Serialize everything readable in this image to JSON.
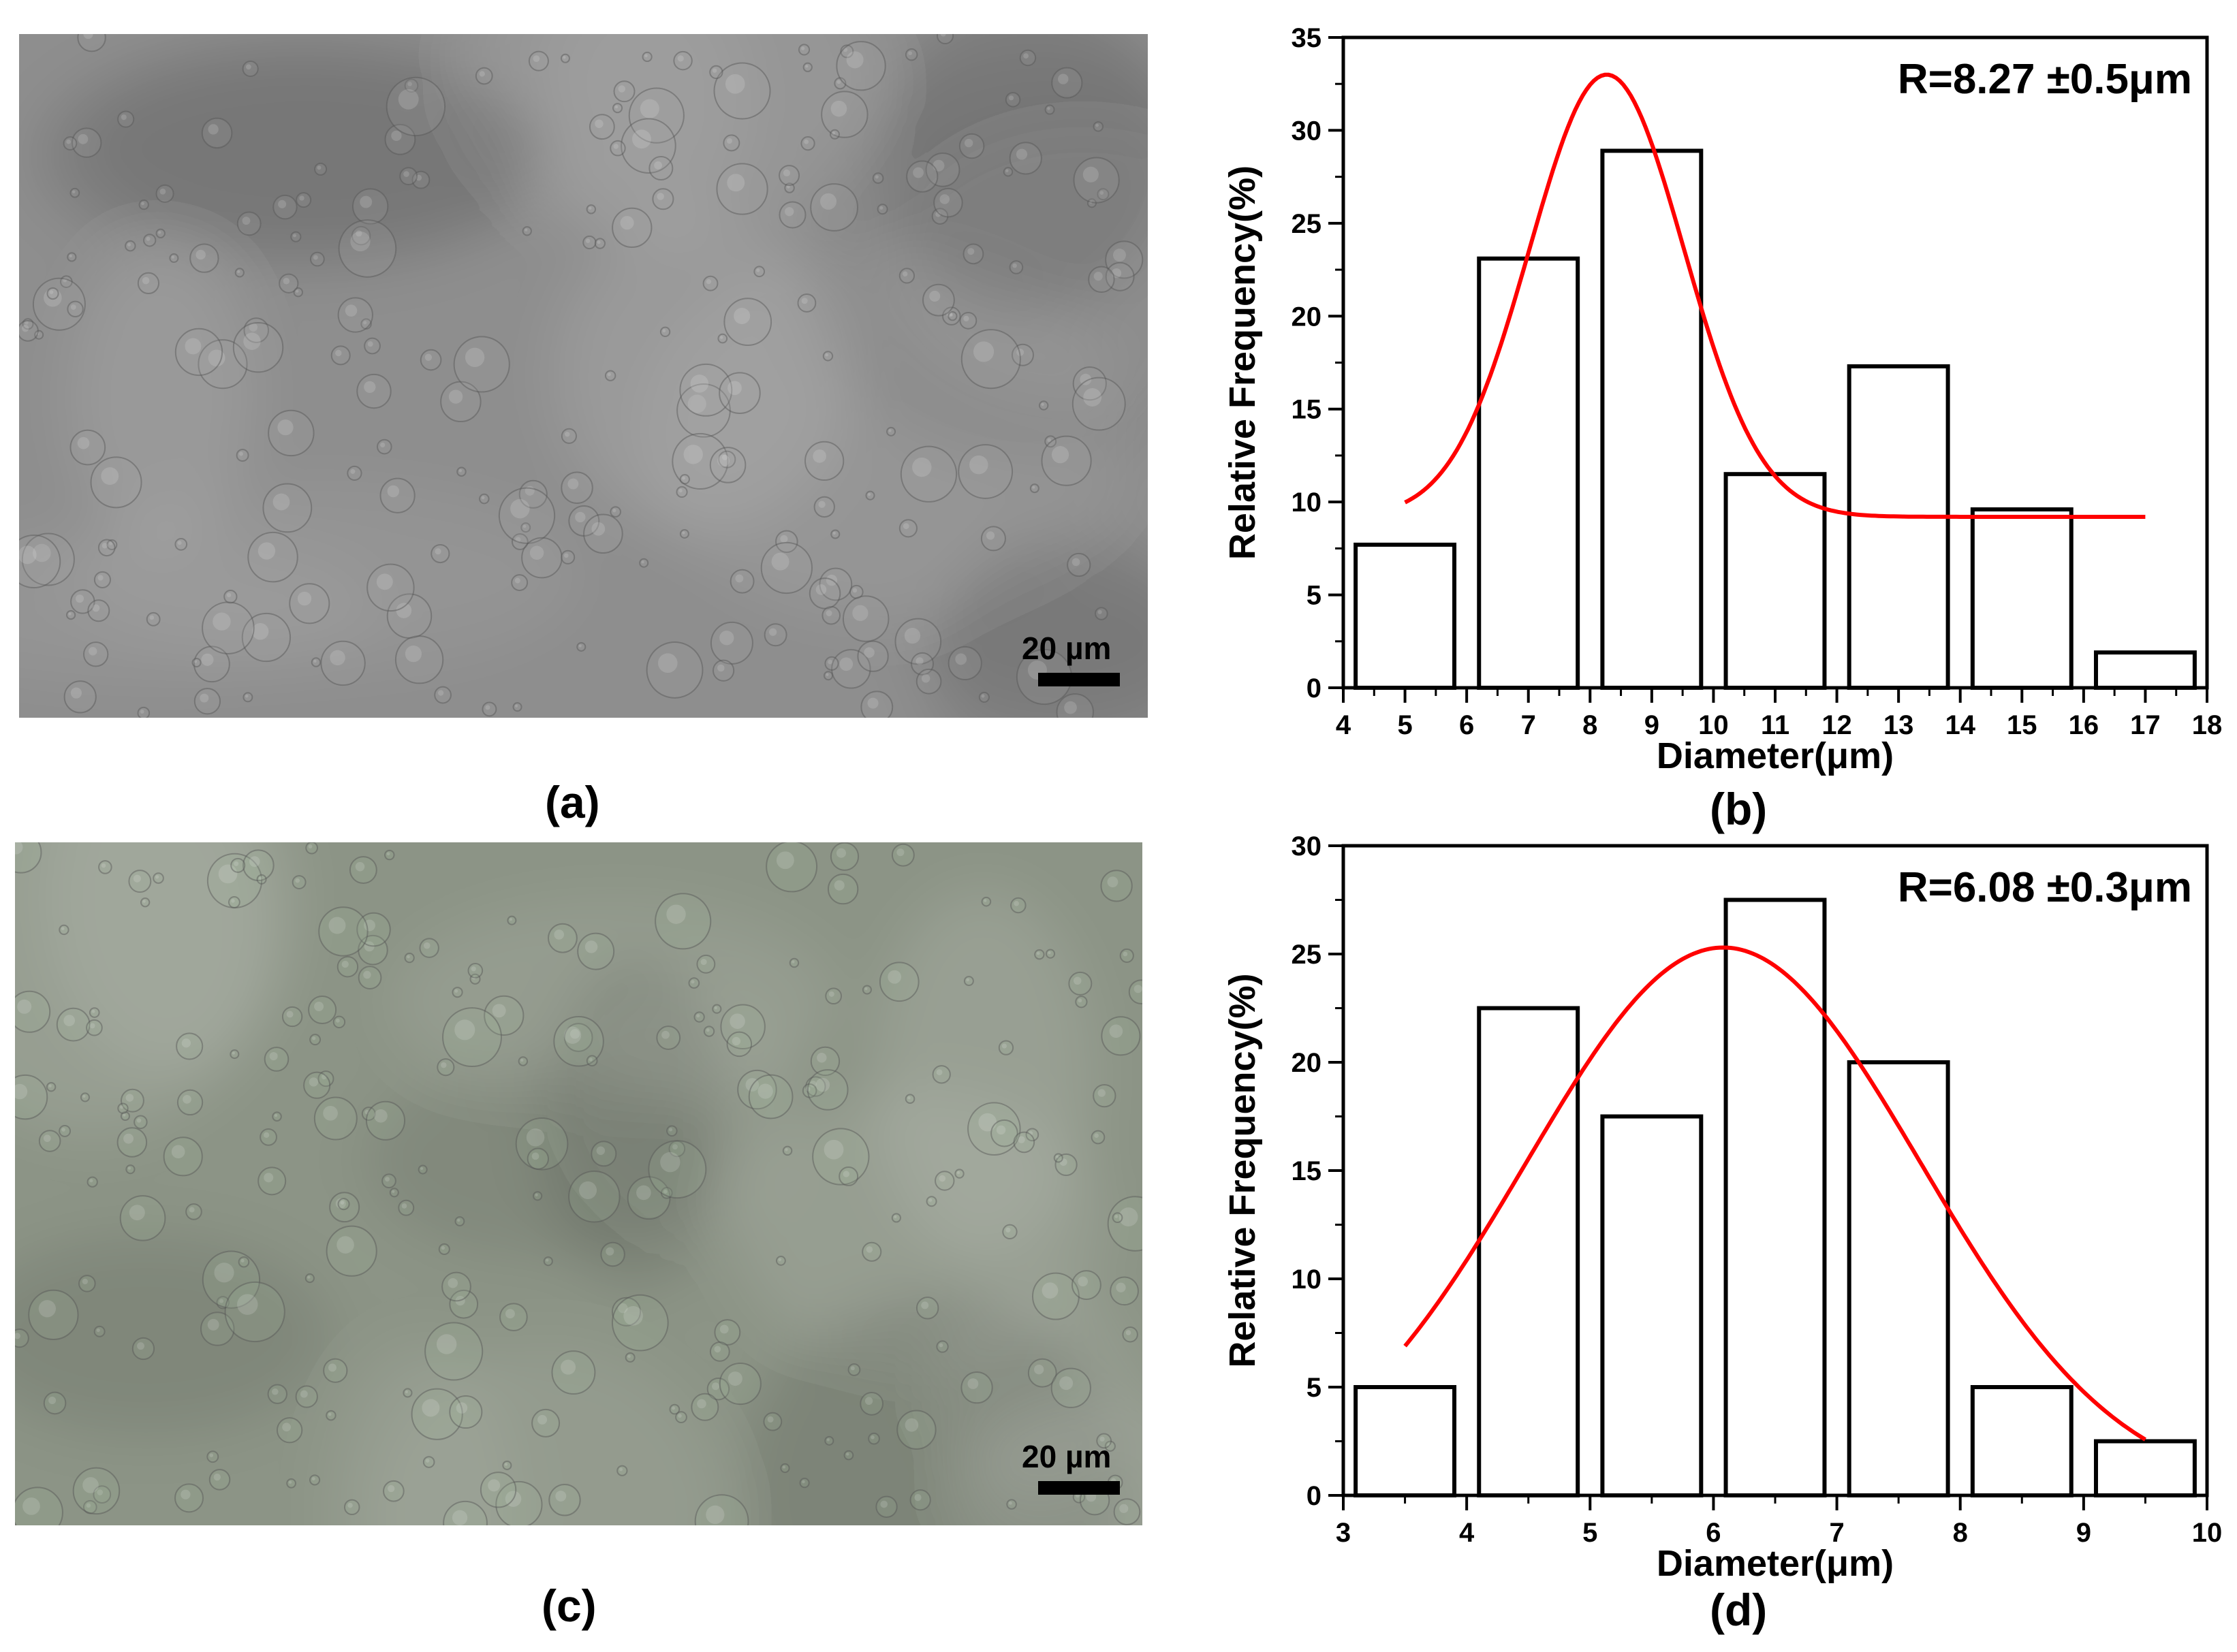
{
  "panels": {
    "a": {
      "label": "(a)",
      "scale_bar": "20 µm"
    },
    "b": {
      "label": "(b)"
    },
    "c": {
      "label": "(c)",
      "scale_bar": "20 µm"
    },
    "d": {
      "label": "(d)"
    }
  },
  "colors": {
    "bars": "#000000",
    "fit": "#ff0000",
    "micro_a": "#8e8e8e",
    "micro_c": "#8c9486"
  },
  "chart_data": [
    {
      "type": "bar",
      "panel": "b",
      "annotation": "R=8.27 ±0.5μm",
      "xlabel": "Diameter(μm)",
      "ylabel": "Relative Frequency(%)",
      "xlim": [
        4,
        18
      ],
      "ylim": [
        0,
        35
      ],
      "xticks": [
        4,
        5,
        6,
        7,
        8,
        9,
        10,
        11,
        12,
        13,
        14,
        15,
        16,
        17,
        18
      ],
      "yticks": [
        0,
        5,
        10,
        15,
        20,
        25,
        30,
        35
      ],
      "bins": [
        {
          "start": 4.2,
          "end": 5.8,
          "value": 7.7
        },
        {
          "start": 6.2,
          "end": 7.8,
          "value": 23.1
        },
        {
          "start": 8.2,
          "end": 9.8,
          "value": 28.9
        },
        {
          "start": 10.2,
          "end": 11.8,
          "value": 11.5
        },
        {
          "start": 12.2,
          "end": 13.8,
          "value": 17.3
        },
        {
          "start": 14.2,
          "end": 15.8,
          "value": 9.6
        },
        {
          "start": 16.2,
          "end": 17.8,
          "value": 1.9
        }
      ],
      "fit": {
        "type": "gaussian",
        "center": 8.27,
        "sigma": 1.25,
        "amplitude": 23.8,
        "baseline": 9.2,
        "xrange": [
          5,
          17
        ]
      }
    },
    {
      "type": "bar",
      "panel": "d",
      "annotation": "R=6.08 ±0.3μm",
      "xlabel": "Diameter(μm)",
      "ylabel": "Relative Frequency(%)",
      "xlim": [
        3,
        10
      ],
      "ylim": [
        0,
        30
      ],
      "xticks": [
        3,
        4,
        5,
        6,
        7,
        8,
        9,
        10
      ],
      "yticks": [
        0,
        5,
        10,
        15,
        20,
        25,
        30
      ],
      "bins": [
        {
          "start": 3.1,
          "end": 3.9,
          "value": 5.0
        },
        {
          "start": 4.1,
          "end": 4.9,
          "value": 22.5
        },
        {
          "start": 5.1,
          "end": 5.9,
          "value": 17.5
        },
        {
          "start": 6.1,
          "end": 6.9,
          "value": 27.5
        },
        {
          "start": 7.1,
          "end": 7.9,
          "value": 20.0
        },
        {
          "start": 8.1,
          "end": 8.9,
          "value": 5.0
        },
        {
          "start": 9.1,
          "end": 9.9,
          "value": 2.5
        }
      ],
      "fit": {
        "type": "gaussian",
        "center": 6.08,
        "sigma": 1.6,
        "amplitude": 25.3,
        "baseline": 0,
        "xrange": [
          3.5,
          9.5
        ]
      }
    }
  ]
}
